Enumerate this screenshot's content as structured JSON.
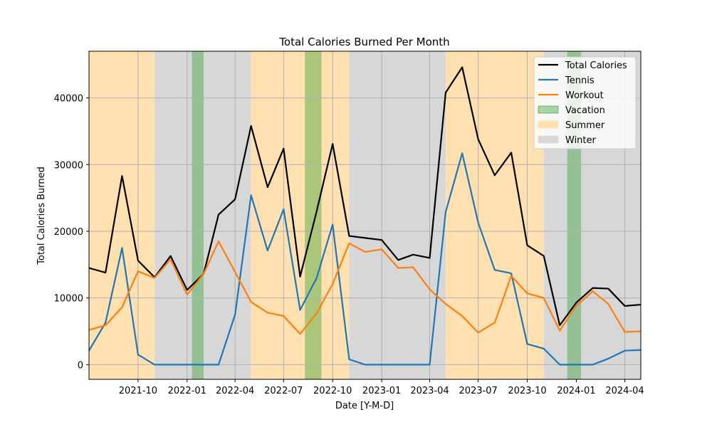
{
  "chart_data": {
    "type": "line",
    "title": "Total Calories Burned Per Month",
    "xlabel": "Date [Y-M-D]",
    "ylabel": "Total Calories Burned",
    "xlim": [
      "2021-07-01",
      "2024-05-01"
    ],
    "ylim": [
      -2200,
      47000
    ],
    "grid": true,
    "legend_position": "top-right",
    "x": [
      "2021-07-01",
      "2021-08-01",
      "2021-09-01",
      "2021-10-01",
      "2021-11-01",
      "2021-12-01",
      "2022-01-01",
      "2022-02-01",
      "2022-03-01",
      "2022-04-01",
      "2022-05-01",
      "2022-06-01",
      "2022-07-01",
      "2022-08-01",
      "2022-09-01",
      "2022-10-01",
      "2022-11-01",
      "2022-12-01",
      "2023-01-01",
      "2023-02-01",
      "2023-03-01",
      "2023-04-01",
      "2023-05-01",
      "2023-06-01",
      "2023-07-01",
      "2023-08-01",
      "2023-09-01",
      "2023-10-01",
      "2023-11-01",
      "2023-12-01",
      "2024-01-01",
      "2024-02-01",
      "2024-03-01",
      "2024-04-01",
      "2024-05-01"
    ],
    "x_ticks": [
      {
        "value": "2021-10-01",
        "label": "2021-10"
      },
      {
        "value": "2022-01-01",
        "label": "2022-01"
      },
      {
        "value": "2022-04-01",
        "label": "2022-04"
      },
      {
        "value": "2022-07-01",
        "label": "2022-07"
      },
      {
        "value": "2022-10-01",
        "label": "2022-10"
      },
      {
        "value": "2023-01-01",
        "label": "2023-01"
      },
      {
        "value": "2023-04-01",
        "label": "2023-04"
      },
      {
        "value": "2023-07-01",
        "label": "2023-07"
      },
      {
        "value": "2023-10-01",
        "label": "2023-10"
      },
      {
        "value": "2024-01-01",
        "label": "2024-01"
      },
      {
        "value": "2024-04-01",
        "label": "2024-04"
      }
    ],
    "y_ticks": [
      {
        "value": 0,
        "label": "0"
      },
      {
        "value": 10000,
        "label": "10000"
      },
      {
        "value": 20000,
        "label": "20000"
      },
      {
        "value": 30000,
        "label": "30000"
      },
      {
        "value": 40000,
        "label": "40000"
      }
    ],
    "series": [
      {
        "name": "Total Calories",
        "color": "#000000",
        "values": [
          14500,
          13800,
          28300,
          15600,
          13100,
          16300,
          11200,
          13600,
          22500,
          24800,
          35800,
          26600,
          32400,
          13200,
          23000,
          33100,
          19300,
          19000,
          18700,
          15700,
          16500,
          16000,
          40800,
          44600,
          33800,
          28400,
          31800,
          17900,
          16300,
          5900,
          9300,
          11500,
          11400,
          8800,
          9000
        ]
      },
      {
        "name": "Tennis",
        "color": "#1f77b4",
        "values": [
          2100,
          6300,
          17500,
          1500,
          0,
          0,
          0,
          0,
          0,
          7500,
          25400,
          17100,
          23300,
          8200,
          13000,
          21000,
          800,
          0,
          0,
          0,
          0,
          0,
          22900,
          31700,
          21300,
          14200,
          13700,
          3100,
          2400,
          0,
          0,
          0,
          900,
          2100,
          2200
        ]
      },
      {
        "name": "Workout",
        "color": "#ff7f0e",
        "values": [
          5200,
          5900,
          8600,
          14000,
          13000,
          15800,
          10500,
          13600,
          18500,
          13900,
          9400,
          7800,
          7300,
          4600,
          7700,
          12100,
          18200,
          16900,
          17300,
          14500,
          14600,
          11300,
          9100,
          7300,
          4800,
          6300,
          13300,
          10700,
          10000,
          5100,
          8800,
          11000,
          9100,
          4900,
          5000
        ]
      }
    ],
    "shaded_regions": [
      {
        "name": "Summer",
        "color": "#ffe0b0",
        "start": "2021-07-01",
        "end": "2021-11-01"
      },
      {
        "name": "Winter",
        "color": "#d7d7d7",
        "start": "2021-11-01",
        "end": "2022-05-01"
      },
      {
        "name": "Summer",
        "color": "#ffe0b0",
        "start": "2022-05-01",
        "end": "2022-11-01"
      },
      {
        "name": "Winter",
        "color": "#d7d7d7",
        "start": "2022-11-01",
        "end": "2023-05-01"
      },
      {
        "name": "Summer",
        "color": "#ffe0b0",
        "start": "2023-05-01",
        "end": "2023-11-01"
      },
      {
        "name": "Winter",
        "color": "#d7d7d7",
        "start": "2023-11-01",
        "end": "2024-05-01"
      }
    ],
    "vacation_regions": [
      {
        "name": "Vacation",
        "color": "#2ca02c",
        "start": "2022-01-10",
        "end": "2022-02-01"
      },
      {
        "name": "Vacation",
        "color": "#2ca02c",
        "start": "2022-08-10",
        "end": "2022-09-10"
      },
      {
        "name": "Vacation",
        "color": "#2ca02c",
        "start": "2023-12-15",
        "end": "2024-01-10"
      }
    ],
    "legend": [
      {
        "label": "Total Calories",
        "kind": "line",
        "color": "#000000"
      },
      {
        "label": "Tennis",
        "kind": "line",
        "color": "#1f77b4"
      },
      {
        "label": "Workout",
        "kind": "line",
        "color": "#ff7f0e"
      },
      {
        "label": "Vacation",
        "kind": "patch",
        "color": "#2ca02c",
        "opacity": 0.4
      },
      {
        "label": "Summer",
        "kind": "patch",
        "color": "#ffe0b0",
        "opacity": 1
      },
      {
        "label": "Winter",
        "kind": "patch",
        "color": "#d7d7d7",
        "opacity": 1
      }
    ]
  }
}
